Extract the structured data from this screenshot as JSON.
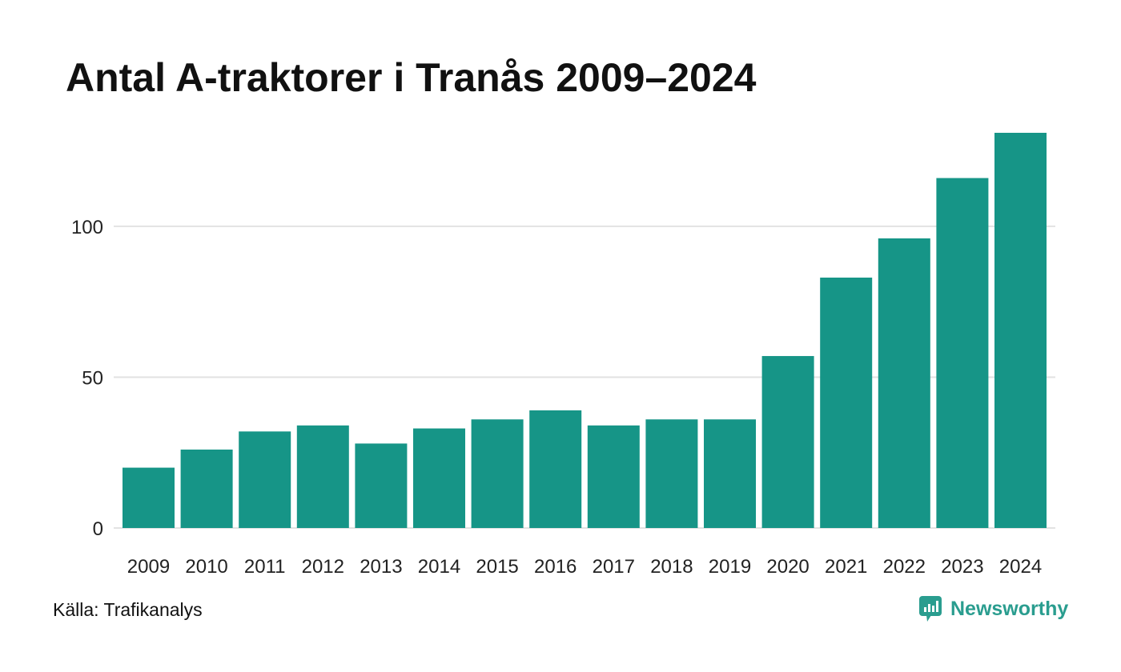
{
  "chart_data": {
    "type": "bar",
    "title": "Antal A-traktorer i Tranås 2009–2024",
    "categories": [
      "2009",
      "2010",
      "2011",
      "2012",
      "2013",
      "2014",
      "2015",
      "2016",
      "2017",
      "2018",
      "2019",
      "2020",
      "2021",
      "2022",
      "2023",
      "2024"
    ],
    "values": [
      20,
      26,
      32,
      34,
      28,
      33,
      36,
      39,
      34,
      36,
      36,
      57,
      83,
      96,
      116,
      131
    ],
    "yticks": [
      0,
      50,
      100
    ],
    "ylim": [
      0,
      131
    ],
    "grid": true,
    "bar_color": "#169587",
    "grid_color": "#e2e2e2"
  },
  "footer": {
    "source": "Källa: Trafikanalys",
    "brand": "Newsworthy",
    "brand_icon": "newsworthy-logo-icon",
    "brand_color": "#2a9d8f"
  }
}
